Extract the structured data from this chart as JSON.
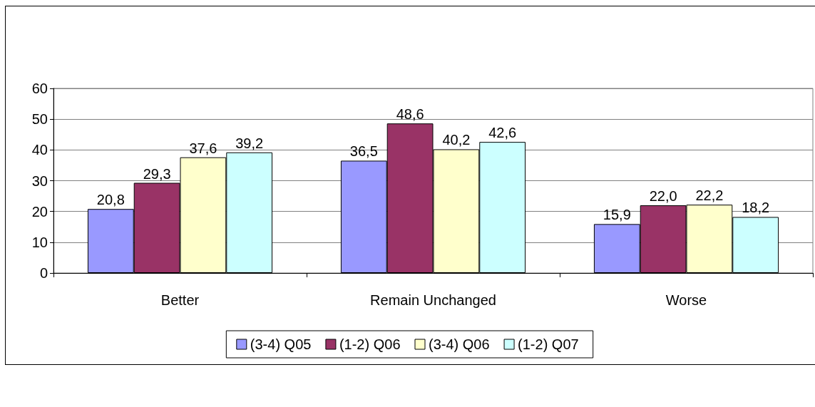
{
  "chart_data": {
    "type": "bar",
    "categories": [
      "Better",
      "Remain Unchanged",
      "Worse"
    ],
    "series": [
      {
        "name": "(3-4) Q05",
        "color": "#9999ff",
        "values": [
          20.8,
          36.5,
          15.9
        ],
        "value_labels": [
          "20,8",
          "36,5",
          "15,9"
        ]
      },
      {
        "name": "(1-2) Q06",
        "color": "#993366",
        "values": [
          29.3,
          48.6,
          22.0
        ],
        "value_labels": [
          "29,3",
          "48,6",
          "22,0"
        ]
      },
      {
        "name": "(3-4) Q06",
        "color": "#ffffcc",
        "values": [
          37.6,
          40.2,
          22.2
        ],
        "value_labels": [
          "37,6",
          "40,2",
          "22,2"
        ]
      },
      {
        "name": "(1-2) Q07",
        "color": "#ccffff",
        "values": [
          39.2,
          42.6,
          18.2
        ],
        "value_labels": [
          "39,2",
          "42,6",
          "18,2"
        ]
      }
    ],
    "ylim": [
      0,
      60
    ],
    "yticks": [
      0,
      10,
      20,
      30,
      40,
      50,
      60
    ],
    "grid": "y",
    "legend": "bottom"
  }
}
